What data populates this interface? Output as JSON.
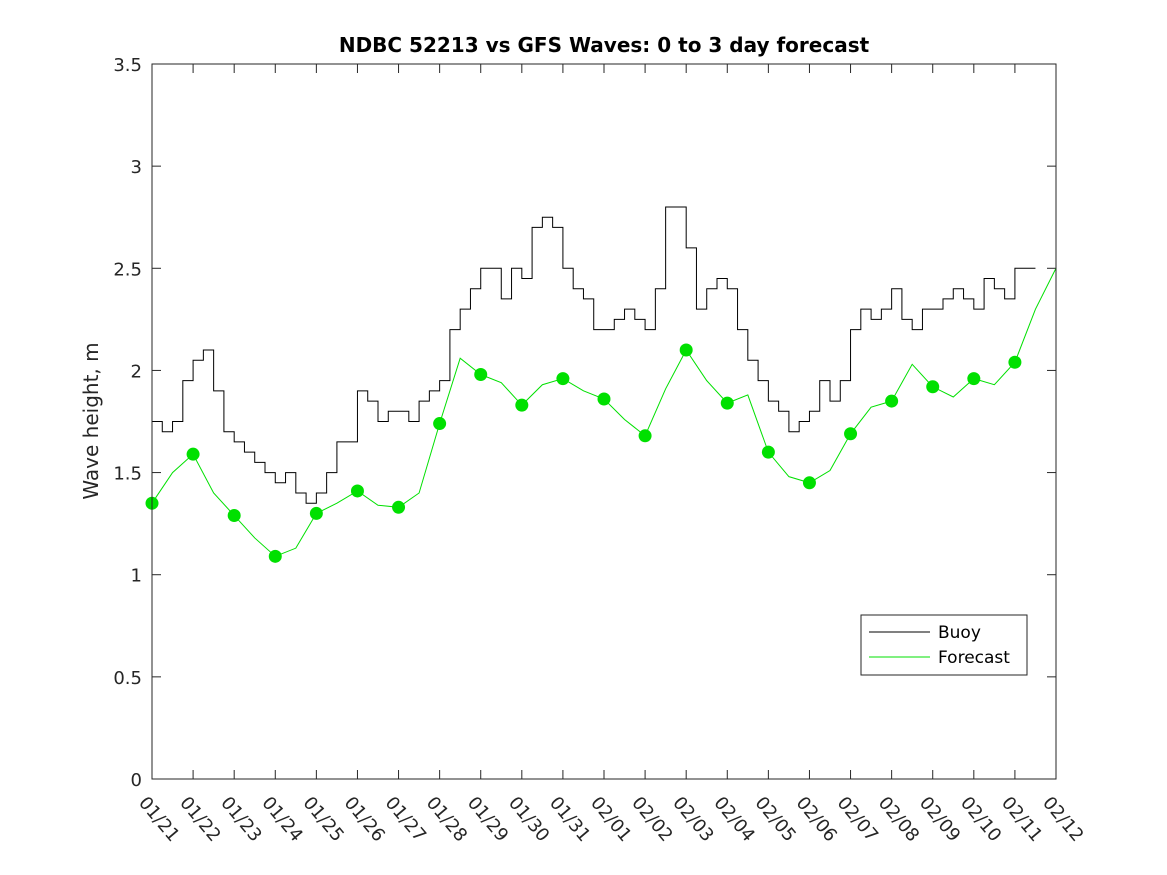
{
  "chart_data": {
    "type": "line",
    "title": "NDBC 52213 vs GFS Waves: 0 to 3 day forecast",
    "xlabel": "",
    "ylabel": "Wave height, m",
    "ylim": [
      0,
      3.5
    ],
    "yticks": [
      "0",
      "0.5",
      "1",
      "1.5",
      "2",
      "2.5",
      "3",
      "3.5"
    ],
    "xlim_days": [
      0,
      22
    ],
    "xticks": [
      "01/21",
      "01/22",
      "01/23",
      "01/24",
      "01/25",
      "01/26",
      "01/27",
      "01/28",
      "01/29",
      "01/30",
      "01/31",
      "02/01",
      "02/02",
      "02/03",
      "02/04",
      "02/05",
      "02/06",
      "02/07",
      "02/08",
      "02/09",
      "02/10",
      "02/11",
      "02/12"
    ],
    "legend": {
      "position": "lower-right",
      "entries": [
        "Buoy",
        "Forecast"
      ]
    },
    "colors": {
      "buoy": "#000000",
      "forecast": "#00e000",
      "axis": "#262626"
    },
    "series": [
      {
        "name": "Buoy",
        "kind": "step-line",
        "x_days": [
          0.0,
          0.25,
          0.5,
          0.75,
          1.0,
          1.25,
          1.5,
          1.75,
          2.0,
          2.25,
          2.5,
          2.75,
          3.0,
          3.25,
          3.5,
          3.75,
          4.0,
          4.25,
          4.5,
          4.75,
          5.0,
          5.25,
          5.5,
          5.75,
          6.0,
          6.25,
          6.5,
          6.75,
          7.0,
          7.25,
          7.5,
          7.75,
          8.0,
          8.25,
          8.5,
          8.75,
          9.0,
          9.25,
          9.5,
          9.75,
          10.0,
          10.25,
          10.5,
          10.75,
          11.0,
          11.25,
          11.5,
          11.75,
          12.0,
          12.25,
          12.5,
          12.75,
          13.0,
          13.25,
          13.5,
          13.75,
          14.0,
          14.25,
          14.5,
          14.75,
          15.0,
          15.25,
          15.5,
          15.75,
          16.0,
          16.25,
          16.5,
          16.75,
          17.0,
          17.25,
          17.5,
          17.75,
          18.0,
          18.25,
          18.5,
          18.75,
          19.0,
          19.25,
          19.5,
          19.75,
          20.0,
          20.25,
          20.5,
          20.75,
          21.0,
          21.25
        ],
        "values": [
          1.75,
          1.7,
          1.75,
          1.95,
          2.05,
          2.1,
          1.9,
          1.7,
          1.65,
          1.6,
          1.55,
          1.5,
          1.45,
          1.5,
          1.4,
          1.35,
          1.4,
          1.5,
          1.65,
          1.65,
          1.9,
          1.85,
          1.75,
          1.8,
          1.8,
          1.75,
          1.85,
          1.9,
          1.95,
          2.2,
          2.3,
          2.4,
          2.5,
          2.5,
          2.35,
          2.5,
          2.45,
          2.7,
          2.75,
          2.7,
          2.5,
          2.4,
          2.35,
          2.2,
          2.2,
          2.25,
          2.3,
          2.25,
          2.2,
          2.4,
          2.8,
          2.8,
          2.6,
          2.3,
          2.4,
          2.45,
          2.4,
          2.2,
          2.05,
          1.95,
          1.85,
          1.8,
          1.7,
          1.75,
          1.8,
          1.95,
          1.85,
          1.95,
          2.2,
          2.3,
          2.25,
          2.3,
          2.4,
          2.25,
          2.2,
          2.3,
          2.3,
          2.35,
          2.4,
          2.35,
          2.3,
          2.45,
          2.4,
          2.35,
          2.5,
          2.5
        ]
      },
      {
        "name": "Forecast",
        "kind": "line-with-markers",
        "x_days": [
          0.0,
          0.5,
          1.0,
          1.5,
          2.0,
          2.5,
          3.0,
          3.5,
          4.0,
          4.5,
          5.0,
          5.5,
          6.0,
          6.5,
          7.0,
          7.5,
          8.0,
          8.5,
          9.0,
          9.5,
          10.0,
          10.5,
          11.0,
          11.5,
          12.0,
          12.5,
          13.0,
          13.5,
          14.0,
          14.5,
          15.0,
          15.5,
          16.0,
          16.5,
          17.0,
          17.5,
          18.0,
          18.5,
          19.0,
          19.5,
          20.0,
          20.5,
          21.0,
          21.5,
          22.0
        ],
        "values": [
          1.35,
          1.5,
          1.59,
          1.4,
          1.29,
          1.18,
          1.09,
          1.13,
          1.3,
          1.35,
          1.41,
          1.34,
          1.33,
          1.4,
          1.74,
          2.06,
          1.98,
          1.94,
          1.83,
          1.93,
          1.96,
          1.9,
          1.86,
          1.76,
          1.68,
          1.91,
          2.1,
          1.95,
          1.84,
          1.88,
          1.6,
          1.48,
          1.45,
          1.51,
          1.69,
          1.82,
          1.85,
          2.03,
          1.92,
          1.87,
          1.96,
          1.93,
          2.04,
          2.3,
          2.5
        ],
        "markers_every": 2
      }
    ]
  }
}
